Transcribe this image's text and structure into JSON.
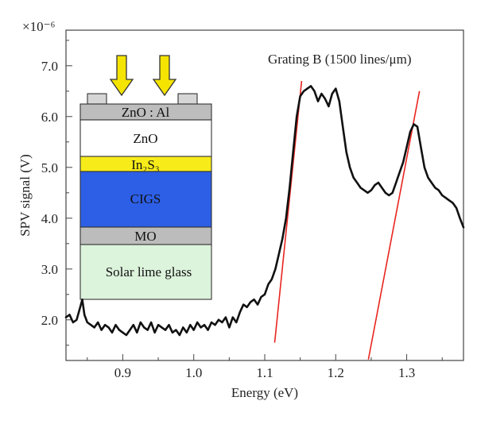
{
  "chart_data": {
    "type": "line",
    "title": "",
    "xlabel": "Energy (eV)",
    "ylabel": "SPV signal (V)",
    "y_multiplier": "×10⁻⁶",
    "xlim": [
      0.82,
      1.38
    ],
    "ylim": [
      1.2,
      7.7
    ],
    "x_ticks": [
      0.9,
      1.0,
      1.1,
      1.2,
      1.3
    ],
    "x_tick_labels": [
      "0.9",
      "1.0",
      "1.1",
      "1.2",
      "1.3"
    ],
    "y_ticks": [
      2.0,
      3.0,
      4.0,
      5.0,
      6.0,
      7.0
    ],
    "y_tick_labels": [
      "2.0",
      "3.0",
      "4.0",
      "5.0",
      "6.0",
      "7.0"
    ],
    "annotation": "Grating B (1500 lines/μm)",
    "series": [
      {
        "color": "#111111",
        "x": [
          0.82,
          0.825,
          0.83,
          0.835,
          0.84,
          0.843,
          0.846,
          0.85,
          0.855,
          0.86,
          0.865,
          0.87,
          0.875,
          0.88,
          0.885,
          0.89,
          0.895,
          0.9,
          0.905,
          0.91,
          0.915,
          0.92,
          0.925,
          0.93,
          0.935,
          0.94,
          0.945,
          0.95,
          0.955,
          0.96,
          0.965,
          0.97,
          0.975,
          0.98,
          0.985,
          0.99,
          0.995,
          1.0,
          1.005,
          1.01,
          1.015,
          1.02,
          1.025,
          1.03,
          1.035,
          1.04,
          1.045,
          1.05,
          1.055,
          1.06,
          1.065,
          1.07,
          1.075,
          1.08,
          1.085,
          1.09,
          1.095,
          1.1,
          1.105,
          1.11,
          1.115,
          1.12,
          1.125,
          1.13,
          1.135,
          1.14,
          1.145,
          1.15,
          1.155,
          1.16,
          1.165,
          1.17,
          1.175,
          1.18,
          1.185,
          1.19,
          1.195,
          1.2,
          1.205,
          1.21,
          1.215,
          1.22,
          1.225,
          1.23,
          1.235,
          1.24,
          1.245,
          1.25,
          1.255,
          1.26,
          1.265,
          1.27,
          1.275,
          1.28,
          1.285,
          1.29,
          1.295,
          1.3,
          1.305,
          1.31,
          1.315,
          1.32,
          1.325,
          1.33,
          1.335,
          1.34,
          1.345,
          1.35,
          1.355,
          1.36,
          1.365,
          1.37,
          1.375,
          1.38
        ],
        "y": [
          2.05,
          2.1,
          1.95,
          2.0,
          2.25,
          2.4,
          2.1,
          1.95,
          1.9,
          1.85,
          1.95,
          1.8,
          1.9,
          1.85,
          1.75,
          1.9,
          1.8,
          1.75,
          1.7,
          1.8,
          1.9,
          1.75,
          1.95,
          1.85,
          1.8,
          1.95,
          1.75,
          1.9,
          1.85,
          1.8,
          1.9,
          1.75,
          1.8,
          1.7,
          1.85,
          1.75,
          1.9,
          1.8,
          1.95,
          1.85,
          1.9,
          1.8,
          1.95,
          1.9,
          2.0,
          1.95,
          2.05,
          1.85,
          2.05,
          1.95,
          2.15,
          2.3,
          2.25,
          2.35,
          2.4,
          2.3,
          2.45,
          2.5,
          2.7,
          2.8,
          3.0,
          3.3,
          3.6,
          4.0,
          4.6,
          5.3,
          6.0,
          6.4,
          6.5,
          6.55,
          6.6,
          6.5,
          6.3,
          6.45,
          6.35,
          6.2,
          6.45,
          6.55,
          6.3,
          5.8,
          5.3,
          5.0,
          4.8,
          4.7,
          4.6,
          4.55,
          4.5,
          4.55,
          4.65,
          4.7,
          4.6,
          4.5,
          4.45,
          4.5,
          4.7,
          4.9,
          5.1,
          5.4,
          5.7,
          5.85,
          5.8,
          5.4,
          5.0,
          4.8,
          4.7,
          4.6,
          4.55,
          4.45,
          4.4,
          4.35,
          4.3,
          4.2,
          4.0,
          3.82
        ]
      }
    ],
    "fit_lines": [
      {
        "color": "#e8251f",
        "x": [
          1.114,
          1.152
        ],
        "y": [
          1.55,
          6.7
        ]
      },
      {
        "color": "#e8251f",
        "x": [
          1.246,
          1.318
        ],
        "y": [
          1.22,
          6.5
        ]
      }
    ]
  },
  "inset": {
    "arrows_color": "#f5e400",
    "layers": [
      {
        "label": "ZnO : Al",
        "color": "#bdbdbd"
      },
      {
        "label": "ZnO",
        "color": "#ffffff"
      },
      {
        "label": "In₂S₃",
        "color": "#f7ec1a"
      },
      {
        "label": "CIGS",
        "color": "#2d5fe6"
      },
      {
        "label": "MO",
        "color": "#bcbcbc"
      },
      {
        "label": "Solar lime glass",
        "color": "#dcf3dc"
      }
    ]
  }
}
